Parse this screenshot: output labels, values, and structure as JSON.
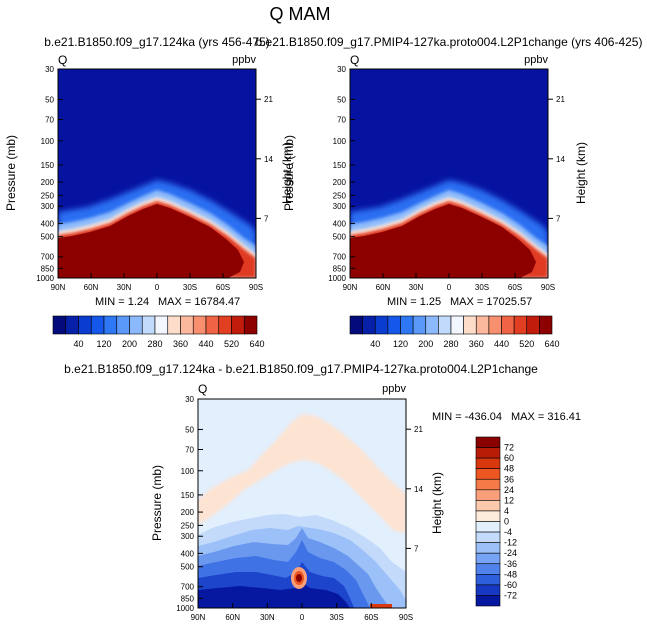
{
  "title": "Q MAM",
  "chart_data": [
    {
      "type": "heatmap",
      "title": "b.e21.B1850.f09_g17.124ka (yrs 456-475)",
      "left_label": "Q",
      "units": "ppbv",
      "ylabel": "Pressure (mb)",
      "ylabel_right": "Height (km)",
      "x_ticks": [
        "90N",
        "60N",
        "30N",
        "0",
        "30S",
        "60S",
        "90S"
      ],
      "y_ticks": [
        "30",
        "50",
        "70",
        "100",
        "150",
        "200",
        "250",
        "300",
        "400",
        "500",
        "700",
        "850",
        "1000"
      ],
      "y_ticks_right": [
        "21",
        "14",
        "7"
      ],
      "min_label": "MIN =   1.24",
      "max_label": "MAX = 16784.47",
      "colorbar_labels": [
        "40",
        "120",
        "200",
        "280",
        "360",
        "440",
        "520",
        "640"
      ],
      "colors": [
        "#030a7a",
        "#0620a8",
        "#0a3cd0",
        "#1457ea",
        "#2f78f5",
        "#5a98fa",
        "#8bb9fb",
        "#c2dafc",
        "#f2f6fe",
        "#fddcca",
        "#fbb89c",
        "#f88f6e",
        "#f06445",
        "#e23e21",
        "#c21c0c",
        "#8d0000"
      ]
    },
    {
      "type": "heatmap",
      "title": "b.e21.B1850.f09_g17.PMIP4-127ka.proto004.L2P1change (yrs 406-425)",
      "left_label": "Q",
      "units": "ppbv",
      "ylabel": "Pressure (mb)",
      "ylabel_right": "Height (km)",
      "x_ticks": [
        "90N",
        "60N",
        "30N",
        "0",
        "30S",
        "60S",
        "90S"
      ],
      "y_ticks": [
        "30",
        "50",
        "70",
        "100",
        "150",
        "200",
        "250",
        "300",
        "400",
        "500",
        "700",
        "850",
        "1000"
      ],
      "y_ticks_right": [
        "21",
        "14",
        "7"
      ],
      "min_label": "MIN =   1.25",
      "max_label": "MAX = 17025.57",
      "colorbar_labels": [
        "40",
        "120",
        "200",
        "280",
        "360",
        "440",
        "520",
        "640"
      ]
    },
    {
      "type": "heatmap",
      "title": "b.e21.B1850.f09_g17.124ka - b.e21.B1850.f09_g17.PMIP4-127ka.proto004.L2P1change",
      "left_label": "Q",
      "units": "ppbv",
      "ylabel": "Pressure (mb)",
      "ylabel_right": "Height (km)",
      "x_ticks": [
        "90N",
        "60N",
        "30N",
        "0",
        "30S",
        "60S",
        "90S"
      ],
      "y_ticks": [
        "30",
        "50",
        "70",
        "100",
        "150",
        "200",
        "250",
        "300",
        "400",
        "500",
        "700",
        "850",
        "1000"
      ],
      "y_ticks_right": [
        "21",
        "14",
        "7"
      ],
      "min_label": "MIN = -436.04",
      "max_label": "MAX = 316.41",
      "colorbar_labels": [
        "72",
        "60",
        "48",
        "36",
        "24",
        "12",
        "4",
        "0",
        "-4",
        "-12",
        "-24",
        "-36",
        "-48",
        "-60",
        "-72"
      ],
      "colors": [
        "#8a0000",
        "#b81c06",
        "#d9380e",
        "#ec5620",
        "#f57a48",
        "#f9a07a",
        "#fcc9ad",
        "#fdebdc",
        "#e2effd",
        "#c3dafb",
        "#9cc0f8",
        "#76a3f3",
        "#4f82ea",
        "#2d5fdc",
        "#1738c2",
        "#0718a0"
      ]
    }
  ]
}
